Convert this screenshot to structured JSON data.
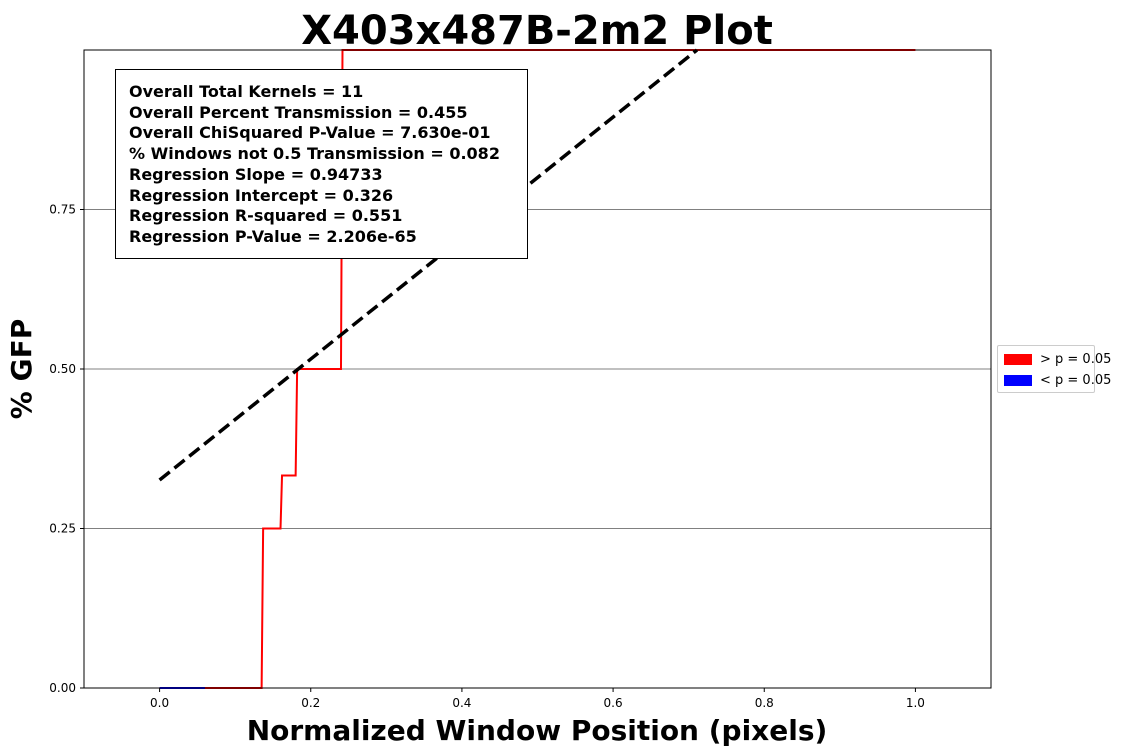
{
  "chart_data": {
    "type": "line",
    "title": "X403x487B-2m2 Plot",
    "xlabel": "Normalized Window Position (pixels)",
    "ylabel": "% GFP",
    "xlim": [
      -0.1,
      1.1
    ],
    "ylim": [
      0.0,
      1.0
    ],
    "x_ticks": [
      0.0,
      0.2,
      0.4,
      0.6,
      0.8,
      1.0
    ],
    "x_tick_labels": [
      "0.0",
      "0.2",
      "0.4",
      "0.6",
      "0.8",
      "1.0"
    ],
    "y_ticks": [
      0.0,
      0.25,
      0.5,
      0.75
    ],
    "y_tick_labels": [
      "0.00",
      "0.25",
      "0.50",
      "0.75"
    ],
    "grid": "horizontal",
    "legend_position": "center-right-outside",
    "legend": [
      {
        "label": "> p = 0.05",
        "color": "#ff0000"
      },
      {
        "label": "< p = 0.05",
        "color": "#0000ff"
      }
    ],
    "series": [
      {
        "color": "#ff0000",
        "style": "step",
        "x": [
          0.0,
          0.135,
          0.137,
          0.16,
          0.162,
          0.18,
          0.182,
          0.24,
          0.242,
          1.0
        ],
        "y": [
          0.0,
          0.0,
          0.25,
          0.25,
          0.333,
          0.333,
          0.5,
          0.5,
          1.0,
          1.0
        ]
      },
      {
        "color": "#0000ff",
        "style": "line",
        "x": [
          0.0,
          0.06
        ],
        "y": [
          0.0,
          0.0
        ]
      },
      {
        "color": "#000000",
        "style": "dashed",
        "x": [
          0.0,
          0.711
        ],
        "y": [
          0.326,
          1.0
        ]
      }
    ],
    "annotations": [
      "Overall Total Kernels = 11",
      "Overall Percent Transmission = 0.455",
      "Overall ChiSquared P-Value = 7.630e-01",
      "% Windows not 0.5 Transmission = 0.082",
      "Regression Slope = 0.94733",
      "Regression Intercept = 0.326",
      "Regression R-squared = 0.551",
      "Regression P-Value = 2.206e-65"
    ]
  }
}
